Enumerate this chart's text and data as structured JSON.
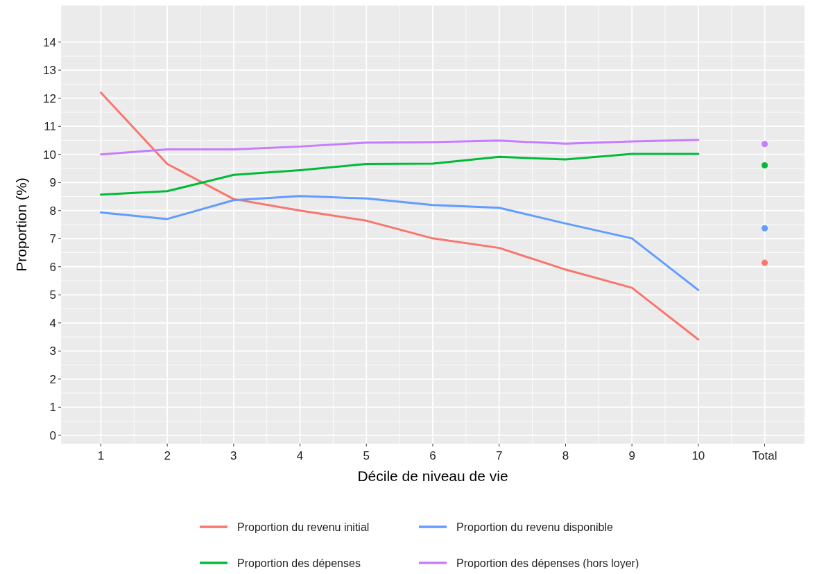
{
  "chart_data": {
    "type": "line",
    "xlabel": "Décile de niveau de vie",
    "ylabel": "Proportion (%)",
    "categories": [
      "1",
      "2",
      "3",
      "4",
      "5",
      "6",
      "7",
      "8",
      "9",
      "10",
      "Total"
    ],
    "ylim": [
      -0.3,
      15.3
    ],
    "yticks": [
      0,
      1,
      2,
      3,
      4,
      5,
      6,
      7,
      8,
      9,
      10,
      11,
      12,
      13,
      14
    ],
    "grid": true,
    "legend": "bottom",
    "line_style": "solid",
    "marker": "none",
    "series": [
      {
        "name": "Proportion du revenu initial",
        "color": "#f8766d",
        "values": [
          12.2,
          9.66,
          8.41,
          8.0,
          7.64,
          7.01,
          6.67,
          5.9,
          5.25,
          3.41,
          null
        ]
      },
      {
        "name": "Proportion du revenu disponible",
        "color": "#619cff",
        "values": [
          7.93,
          7.7,
          8.37,
          8.52,
          8.43,
          8.2,
          8.1,
          7.54,
          7.01,
          5.17,
          null
        ]
      },
      {
        "name": "Proportion des dépenses",
        "color": "#00ba38",
        "values": [
          8.57,
          8.69,
          9.27,
          9.44,
          9.66,
          9.67,
          9.91,
          9.82,
          10.02,
          10.02,
          null
        ]
      },
      {
        "name": "Proportion des dépenses (hors loyer)",
        "color": "#c77cff",
        "values": [
          10.0,
          10.18,
          10.18,
          10.28,
          10.42,
          10.44,
          10.49,
          10.38,
          10.46,
          10.52,
          null
        ]
      },
      {
        "type": "scatter",
        "marker": "circle",
        "color": "#f8766d",
        "x": [
          "Total"
        ],
        "values": [
          6.14
        ]
      },
      {
        "type": "scatter",
        "marker": "circle",
        "color": "#619cff",
        "x": [
          "Total"
        ],
        "values": [
          7.37
        ]
      },
      {
        "type": "scatter",
        "marker": "circle",
        "color": "#00ba38",
        "x": [
          "Total"
        ],
        "values": [
          9.61
        ]
      },
      {
        "type": "scatter",
        "marker": "circle",
        "color": "#c77cff",
        "x": [
          "Total"
        ],
        "values": [
          10.37
        ]
      }
    ]
  }
}
